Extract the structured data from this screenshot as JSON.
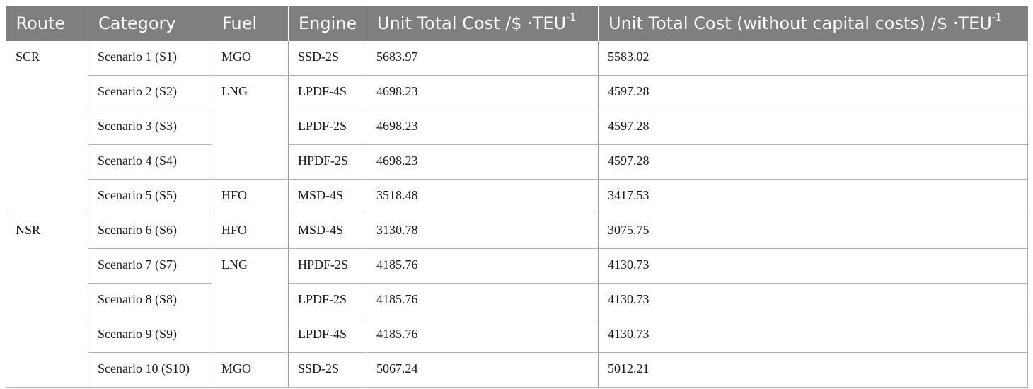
{
  "table": {
    "headers": {
      "route": "Route",
      "category": "Category",
      "fuel": "Fuel",
      "engine": "Engine",
      "cost": "Unit Total Cost /$ ·TEU",
      "cost_sup": "-1",
      "cost_wo": "Unit Total Cost (without capital costs) /$ ·TEU",
      "cost_wo_sup": "-1"
    },
    "routes": [
      "SCR",
      "NSR"
    ],
    "fuels": [
      "MGO",
      "LNG",
      "HFO",
      "HFO",
      "LNG",
      "MGO"
    ],
    "rows": [
      {
        "category": "Scenario 1 (S1)",
        "engine": "SSD-2S",
        "cost": "5683.97",
        "cost_wo": "5583.02"
      },
      {
        "category": "Scenario 2 (S2)",
        "engine": "LPDF-4S",
        "cost": "4698.23",
        "cost_wo": "4597.28"
      },
      {
        "category": "Scenario 3 (S3)",
        "engine": "LPDF-2S",
        "cost": "4698.23",
        "cost_wo": "4597.28"
      },
      {
        "category": "Scenario 4 (S4)",
        "engine": "HPDF-2S",
        "cost": "4698.23",
        "cost_wo": "4597.28"
      },
      {
        "category": "Scenario 5 (S5)",
        "engine": "MSD-4S",
        "cost": "3518.48",
        "cost_wo": "3417.53"
      },
      {
        "category": "Scenario 6 (S6)",
        "engine": "MSD-4S",
        "cost": "3130.78",
        "cost_wo": "3075.75"
      },
      {
        "category": "Scenario 7 (S7)",
        "engine": "HPDF-2S",
        "cost": "4185.76",
        "cost_wo": "4130.73"
      },
      {
        "category": "Scenario 8 (S8)",
        "engine": "LPDF-2S",
        "cost": "4185.76",
        "cost_wo": "4130.73"
      },
      {
        "category": "Scenario 9 (S9)",
        "engine": "LPDF-4S",
        "cost": "4185.76",
        "cost_wo": "4130.73"
      },
      {
        "category": "Scenario 10 (S10)",
        "engine": "SSD-2S",
        "cost": "5067.24",
        "cost_wo": "5012.21"
      }
    ]
  }
}
